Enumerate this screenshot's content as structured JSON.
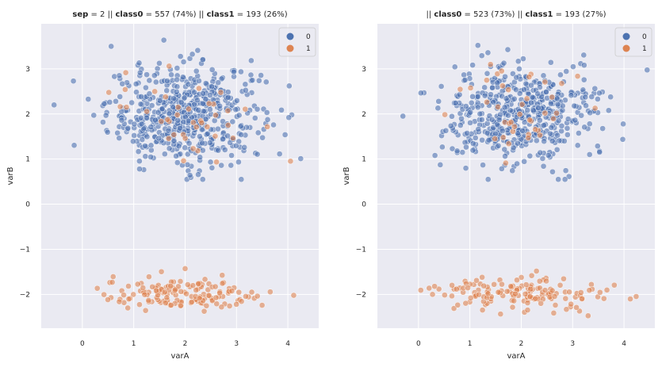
{
  "colors": {
    "background": "#eaeaf2",
    "grid": "#ffffff",
    "class0": "#4c72b0",
    "class1": "#dd8452"
  },
  "chart_data": [
    {
      "type": "scatter",
      "title_parts": [
        {
          "text": "sep",
          "bold": true
        },
        {
          "text": " = 2 || ",
          "bold": false
        },
        {
          "text": "class0",
          "bold": true
        },
        {
          "text": " = 557 (74%)  || ",
          "bold": false
        },
        {
          "text": "class1",
          "bold": true
        },
        {
          "text": " = 193 (26%)",
          "bold": false
        }
      ],
      "xlabel": "varA",
      "ylabel": "varB",
      "xlim": [
        -0.8,
        4.6
      ],
      "ylim": [
        -2.75,
        4.0
      ],
      "xticks": [
        "0",
        "1",
        "2",
        "3",
        "4"
      ],
      "yticks": [
        "−2",
        "−1",
        "0",
        "1",
        "2",
        "3"
      ],
      "legend_loc": "upper right",
      "legend": [
        "0",
        "1"
      ],
      "series": [
        {
          "name": "0",
          "class": "class0",
          "count": 557,
          "cluster": {
            "center": [
              2.0,
              2.0
            ],
            "spread": [
              0.75,
              0.55
            ]
          }
        },
        {
          "name": "1",
          "class": "class1",
          "count": 193,
          "cluster_upper": {
            "count": 40,
            "center": [
              2.0,
              2.0
            ],
            "spread": [
              0.7,
              0.5
            ]
          },
          "cluster_lower": {
            "count": 153,
            "center": [
              2.0,
              -2.0
            ],
            "spread": [
              0.8,
              0.18
            ]
          }
        }
      ]
    },
    {
      "type": "scatter",
      "title_parts": [
        {
          "text": "|| ",
          "bold": false
        },
        {
          "text": "class0",
          "bold": true
        },
        {
          "text": " = 523 (73%)  || ",
          "bold": false
        },
        {
          "text": "class1",
          "bold": true
        },
        {
          "text": " = 193 (27%)",
          "bold": false
        }
      ],
      "xlabel": "varA",
      "ylabel": "varB",
      "xlim": [
        -0.8,
        4.6
      ],
      "ylim": [
        -2.75,
        4.0
      ],
      "xticks": [
        "0",
        "1",
        "2",
        "3",
        "4"
      ],
      "yticks": [
        "−2",
        "−1",
        "0",
        "1",
        "2",
        "3"
      ],
      "legend_loc": "upper right",
      "legend": [
        "0",
        "1"
      ],
      "series": [
        {
          "name": "0",
          "class": "class0",
          "count": 523,
          "cluster": {
            "center": [
              2.0,
              2.0
            ],
            "spread": [
              0.75,
              0.55
            ]
          }
        },
        {
          "name": "1",
          "class": "class1",
          "count": 193,
          "cluster_upper": {
            "count": 40,
            "center": [
              2.0,
              2.0
            ],
            "spread": [
              0.7,
              0.5
            ]
          },
          "cluster_lower": {
            "count": 153,
            "center": [
              2.0,
              -2.0
            ],
            "spread": [
              0.8,
              0.18
            ]
          }
        }
      ]
    }
  ]
}
